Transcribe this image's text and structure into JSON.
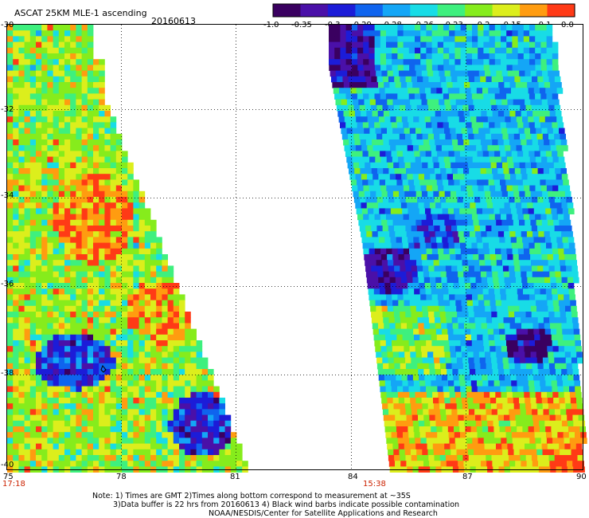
{
  "header": {
    "product_title": "ASCAT 25KM MLE-1 ascending",
    "date": "20160613"
  },
  "colorbar": {
    "tick_labels": [
      "-1.0",
      "-0.35",
      "-0.3",
      "-0.29",
      "-0.28",
      "-0.26",
      "-0.23",
      "-0.2",
      "-0.15",
      "-0.1",
      "0.0"
    ],
    "colors": [
      "#3a0060",
      "#4a10a8",
      "#1c1cd8",
      "#0f64ee",
      "#14a6f6",
      "#18dce6",
      "#3ef07e",
      "#86ec1c",
      "#dcee1c",
      "#ff9c10",
      "#ff3a16"
    ]
  },
  "map": {
    "lat_labels": [
      "-30",
      "-32",
      "-34",
      "-36",
      "-38",
      "-40"
    ],
    "lon_labels": [
      "75",
      "78",
      "81",
      "84",
      "87",
      "90"
    ],
    "pass_times": [
      "17:18",
      "15:38"
    ]
  },
  "notes": {
    "line1": "Note: 1) Times are GMT 2)Times along bottom correspond to measurement at ~35S",
    "line2": "3)Data buffer is 22 hrs from 20160613 4) Black wind barbs indicate possible contamination",
    "line3": "NOAA/NESDIS/Center for Satellite Applications and Research"
  }
}
